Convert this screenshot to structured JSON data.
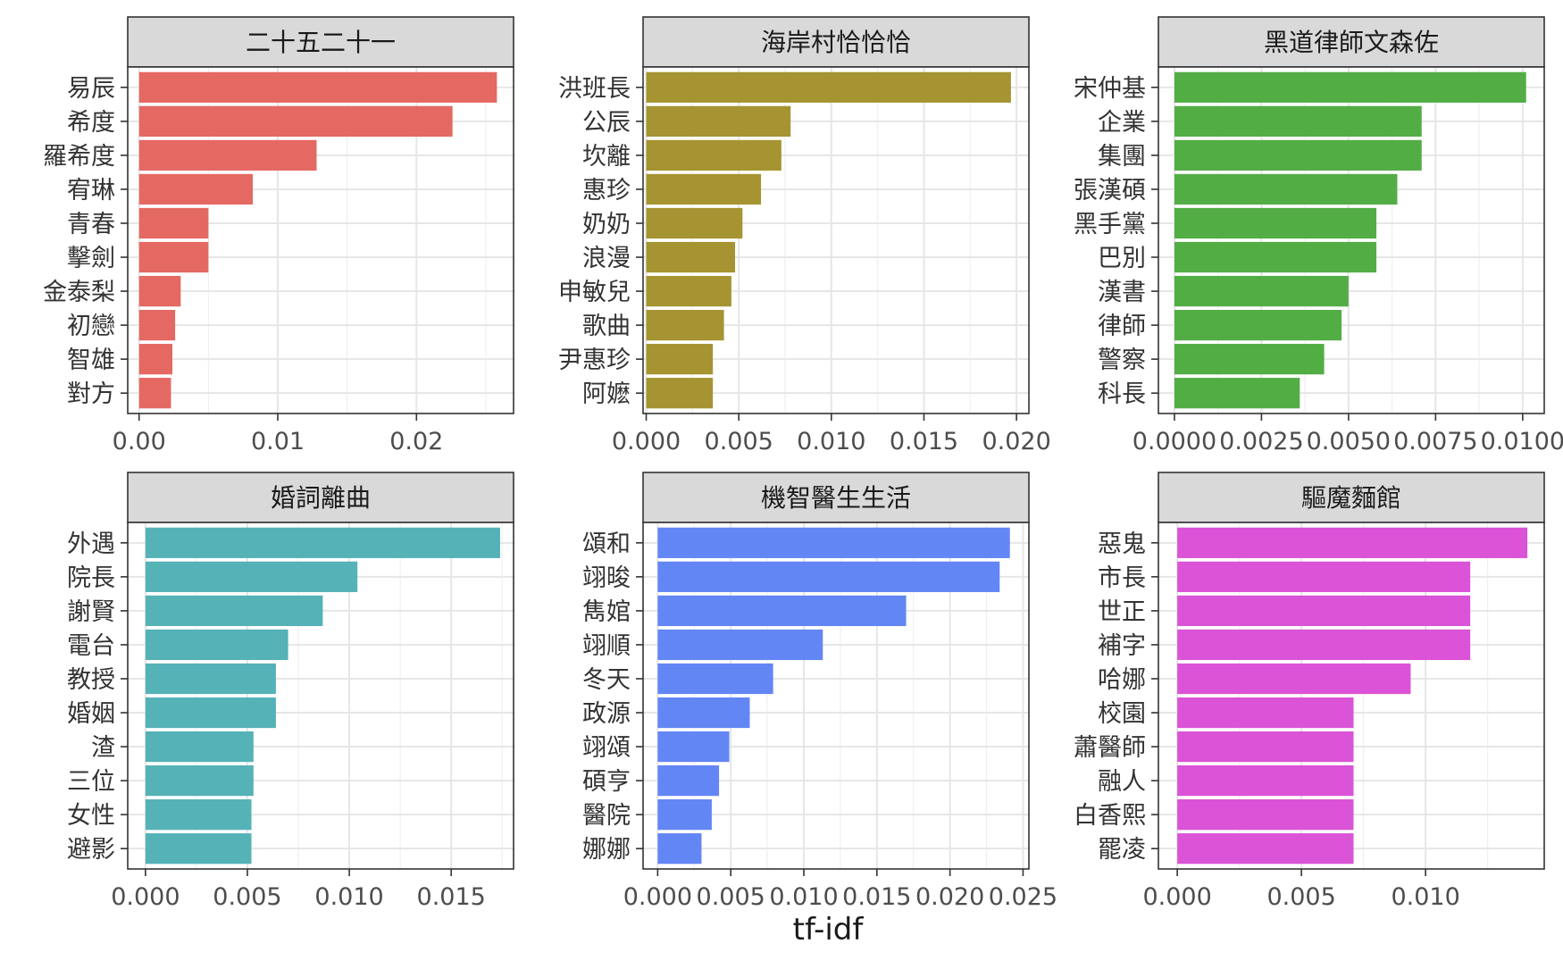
{
  "chart_data": {
    "type": "bar",
    "orientation": "horizontal",
    "xlabel": "tf-idf",
    "ylabel": "",
    "legend": "none",
    "grid": true,
    "panels": [
      {
        "title": "二十五二十一",
        "color": "#E46962",
        "categories": [
          "易辰",
          "希度",
          "羅希度",
          "宥琳",
          "青春",
          "擊劍",
          "金泰梨",
          "初戀",
          "智雄",
          "對方"
        ],
        "values": [
          0.0258,
          0.0226,
          0.0128,
          0.0082,
          0.005,
          0.005,
          0.003,
          0.0026,
          0.0024,
          0.0023
        ],
        "xlim": [
          -0.00082,
          0.027
        ],
        "ticks": [
          0.0,
          0.01,
          0.02
        ],
        "tick_labels": [
          "0.00",
          "0.01",
          "0.02"
        ]
      },
      {
        "title": "海岸村恰恰恰",
        "color": "#A59431",
        "categories": [
          "洪班長",
          "公辰",
          "坎離",
          "惠珍",
          "奶奶",
          "浪漫",
          "申敏兒",
          "歌曲",
          "尹惠珍",
          "阿嬷"
        ],
        "values": [
          0.0197,
          0.0078,
          0.0073,
          0.0062,
          0.0052,
          0.0048,
          0.0046,
          0.0042,
          0.0036,
          0.0036
        ],
        "xlim": [
          -0.00017,
          0.02067
        ],
        "ticks": [
          0.0,
          0.005,
          0.01,
          0.015,
          0.02
        ],
        "tick_labels": [
          "0.000",
          "0.005",
          "0.010",
          "0.015",
          "0.020"
        ]
      },
      {
        "title": "黑道律師文森佐",
        "color": "#52AD45",
        "categories": [
          "宋仲基",
          "企業",
          "集團",
          "張漢碩",
          "黑手黨",
          "巴別",
          "漢書",
          "律師",
          "警察",
          "科長"
        ],
        "values": [
          0.0101,
          0.0071,
          0.0071,
          0.0064,
          0.0058,
          0.0058,
          0.005,
          0.0048,
          0.0043,
          0.0036
        ],
        "xlim": [
          -0.00046,
          0.01062
        ],
        "ticks": [
          0.0,
          0.0025,
          0.005,
          0.0075,
          0.01
        ],
        "tick_labels": [
          "0.0000",
          "0.0025",
          "0.0050",
          "0.0075",
          "0.0100"
        ]
      },
      {
        "title": "婚詞離曲",
        "color": "#55B2B6",
        "categories": [
          "外遇",
          "院長",
          "謝賢",
          "電台",
          "教授",
          "婚姻",
          "渣",
          "三位",
          "女性",
          "避影"
        ],
        "values": [
          0.0174,
          0.0104,
          0.0087,
          0.007,
          0.0064,
          0.0064,
          0.0053,
          0.0053,
          0.0052,
          0.0052
        ],
        "xlim": [
          -0.00087,
          0.01806
        ],
        "ticks": [
          0.0,
          0.005,
          0.01,
          0.015
        ],
        "tick_labels": [
          "0.000",
          "0.005",
          "0.010",
          "0.015"
        ]
      },
      {
        "title": "機智醫生生活",
        "color": "#6386F5",
        "categories": [
          "頌和",
          "翊晙",
          "雋婠",
          "翊順",
          "冬天",
          "政源",
          "翊頌",
          "碩亨",
          "醫院",
          "娜娜"
        ],
        "values": [
          0.0241,
          0.0234,
          0.017,
          0.0113,
          0.0079,
          0.0063,
          0.0049,
          0.0042,
          0.0037,
          0.003
        ],
        "xlim": [
          -0.001,
          0.0254
        ],
        "ticks": [
          0.0,
          0.005,
          0.01,
          0.015,
          0.02,
          0.025
        ],
        "tick_labels": [
          "0.000",
          "0.005",
          "0.010",
          "0.015",
          "0.020",
          "0.025"
        ]
      },
      {
        "title": "驅魔麵館",
        "color": "#DB53D6",
        "categories": [
          "惡鬼",
          "市長",
          "世正",
          "補字",
          "哈娜",
          "校園",
          "蕭醫師",
          "融人",
          "白香熙",
          "罷凌"
        ],
        "values": [
          0.0141,
          0.0118,
          0.0118,
          0.0118,
          0.0094,
          0.0071,
          0.0071,
          0.0071,
          0.0071,
          0.0071
        ],
        "xlim": [
          -0.00076,
          0.01478
        ],
        "ticks": [
          0.0,
          0.005,
          0.01
        ],
        "tick_labels": [
          "0.000",
          "0.005",
          "0.010"
        ]
      }
    ]
  }
}
